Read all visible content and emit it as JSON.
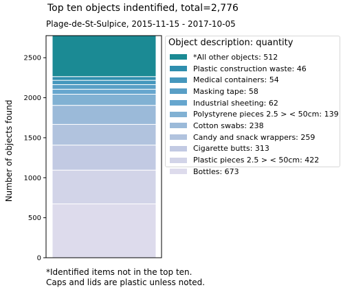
{
  "chart_data": {
    "type": "bar",
    "stacked": true,
    "title": "Top ten objects indentified,  total=2,776",
    "subtitle": "Plage-de-St-Sulpice, 2015-11-15 - 2017-10-05",
    "xlabel": "",
    "ylabel": "Number of objects found",
    "ylim": [
      0,
      2776
    ],
    "yticks": [
      0,
      500,
      1000,
      1500,
      2000,
      2500
    ],
    "legend": {
      "title": "Object description: quantity",
      "placement": "right"
    },
    "series": [
      {
        "name": "Bottles: 673",
        "value": 673,
        "color": "#dddbec"
      },
      {
        "name": "Plastic pieces 2.5 > < 50cm: 422",
        "value": 422,
        "color": "#d2d4e8"
      },
      {
        "name": "Cigarette butts: 313",
        "value": 313,
        "color": "#c2cae3"
      },
      {
        "name": "Candy and snack wrappers: 259",
        "value": 259,
        "color": "#b1c3de"
      },
      {
        "name": "Cotton swabs: 238",
        "value": 238,
        "color": "#9bbad9"
      },
      {
        "name": "Polystyrene pieces 2.5 > < 50cm: 139",
        "value": 139,
        "color": "#81b1d3"
      },
      {
        "name": "Industrial sheeting: 62",
        "value": 62,
        "color": "#66a6ce"
      },
      {
        "name": "Masking tape: 58",
        "value": 58,
        "color": "#599fc6"
      },
      {
        "name": "Medical containers: 54",
        "value": 54,
        "color": "#4597bd"
      },
      {
        "name": "Plastic construction waste: 46",
        "value": 46,
        "color": "#2f8eae"
      },
      {
        "name": "*All other objects: 512",
        "value": 512,
        "color": "#1b8a94"
      }
    ],
    "footnote": [
      "*Identified items not in the top ten.",
      "Caps and lids are plastic unless noted."
    ]
  }
}
